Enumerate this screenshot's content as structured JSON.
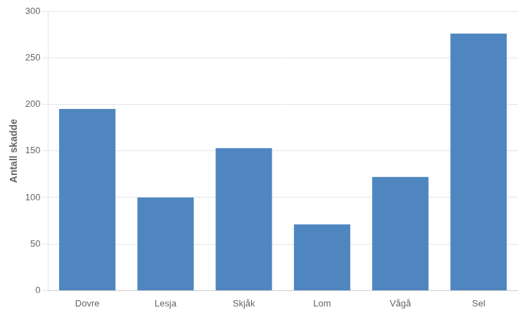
{
  "chart_data": {
    "type": "bar",
    "categories": [
      "Dovre",
      "Lesja",
      "Skjåk",
      "Lom",
      "Vågå",
      "Sel"
    ],
    "values": [
      195,
      100,
      153,
      71,
      122,
      276
    ],
    "color": "#4f86c0",
    "ylabel": "Antall skadde",
    "ylim": [
      0,
      300
    ],
    "yticks": [
      0,
      50,
      100,
      150,
      200,
      250,
      300
    ],
    "grid": true
  }
}
